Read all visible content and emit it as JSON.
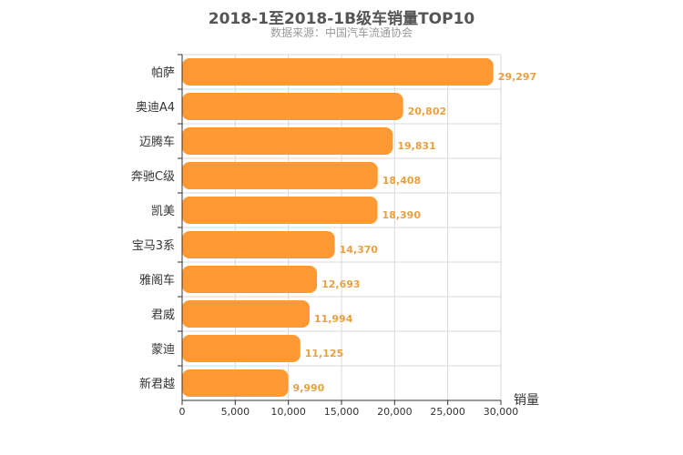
{
  "chart_data": {
    "type": "bar",
    "orientation": "horizontal",
    "title": "2018-1至2018-1B级车销量TOP10",
    "subtitle": "数据来源：中国汽车流通协会",
    "xlabel": "销量",
    "ylabel": "",
    "xlim": [
      0,
      30000
    ],
    "ticks": [
      0,
      5000,
      10000,
      15000,
      20000,
      25000,
      30000
    ],
    "tick_labels": [
      "0",
      "5,000",
      "10,000",
      "15,000",
      "20,000",
      "25,000",
      "30,000"
    ],
    "grid": true,
    "legend": "none",
    "categories": [
      "帕萨",
      "奥迪A4",
      "迈腾车",
      "奔驰C级",
      "凯美",
      "宝马3系",
      "雅阁车",
      "君威",
      "蒙迪",
      "新君越"
    ],
    "values": [
      29297,
      20802,
      19831,
      18408,
      18390,
      14370,
      12693,
      11994,
      11125,
      9990
    ],
    "value_labels": [
      "29,297",
      "20,802",
      "19,831",
      "18,408",
      "18,390",
      "14,370",
      "12,693",
      "11,994",
      "11,125",
      "9,990"
    ],
    "colors": {
      "bar": "#ff9933",
      "label": "#e8a045",
      "grid": "#d9d9d9",
      "axis": "#333333",
      "title": "#555555",
      "subtitle": "#999999"
    }
  }
}
